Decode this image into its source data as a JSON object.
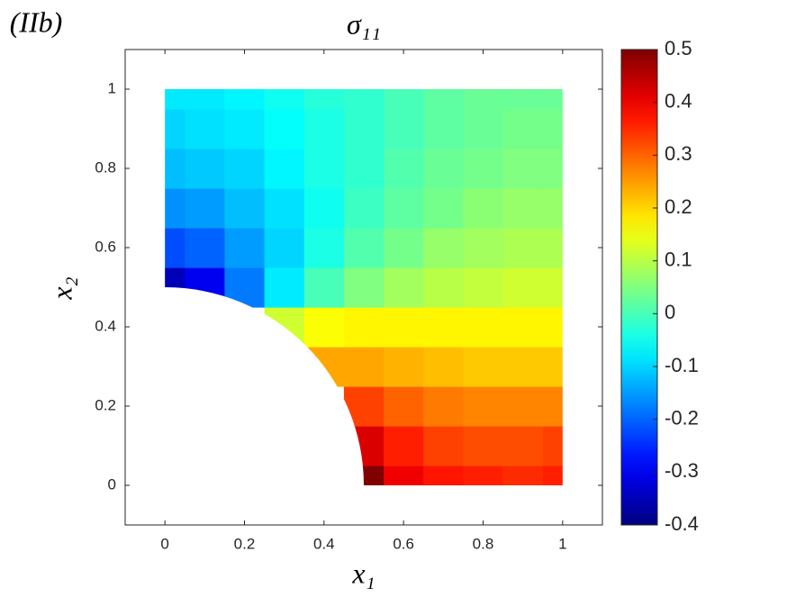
{
  "chart_data": {
    "type": "contour",
    "panel_label": "(IIb)",
    "title": "σ₁₁",
    "x_label": "x₁",
    "y_label": "x₂",
    "x": [
      0,
      0.1,
      0.2,
      0.3,
      0.4,
      0.5,
      0.6,
      0.7,
      0.8,
      0.9,
      1
    ],
    "y": [
      0,
      0.1,
      0.2,
      0.3,
      0.4,
      0.5,
      0.6,
      0.7,
      0.8,
      0.9,
      1
    ],
    "z": [
      [
        null,
        null,
        null,
        null,
        null,
        0.5,
        0.4,
        0.37,
        0.36,
        0.35,
        0.36
      ],
      [
        null,
        null,
        null,
        null,
        null,
        0.42,
        0.36,
        0.33,
        0.32,
        0.32,
        0.33
      ],
      [
        null,
        null,
        null,
        null,
        null,
        0.33,
        0.3,
        0.28,
        0.27,
        0.27,
        0.27
      ],
      [
        null,
        null,
        null,
        null,
        0.24,
        0.24,
        0.23,
        0.22,
        0.21,
        0.21,
        0.21
      ],
      [
        null,
        null,
        null,
        0.12,
        0.16,
        0.17,
        0.17,
        0.17,
        0.17,
        0.17,
        0.17
      ],
      [
        -0.35,
        -0.3,
        -0.18,
        -0.08,
        0.0,
        0.05,
        0.08,
        0.1,
        0.11,
        0.12,
        0.12
      ],
      [
        -0.22,
        -0.2,
        -0.15,
        -0.1,
        -0.04,
        0.01,
        0.04,
        0.07,
        0.08,
        0.09,
        0.09
      ],
      [
        -0.16,
        -0.15,
        -0.12,
        -0.09,
        -0.05,
        -0.01,
        0.02,
        0.04,
        0.06,
        0.07,
        0.07
      ],
      [
        -0.12,
        -0.11,
        -0.1,
        -0.07,
        -0.04,
        -0.02,
        0.01,
        0.03,
        0.04,
        0.05,
        0.05
      ],
      [
        -0.1,
        -0.09,
        -0.08,
        -0.06,
        -0.04,
        -0.02,
        0.0,
        0.02,
        0.03,
        0.04,
        0.04
      ],
      [
        -0.08,
        -0.08,
        -0.07,
        -0.05,
        -0.03,
        -0.02,
        0.0,
        0.02,
        0.03,
        0.03,
        0.03
      ]
    ],
    "hole_radius": 0.5,
    "colormap": "jet",
    "xlim": [
      -0.1,
      1.1
    ],
    "xticks": [
      0,
      0.2,
      0.4,
      0.6,
      0.8,
      1
    ],
    "ylim": [
      -0.1,
      1.1
    ],
    "yticks": [
      0,
      0.2,
      0.4,
      0.6,
      0.8,
      1
    ],
    "clim": [
      -0.4,
      0.5
    ],
    "cticks": [
      -0.4,
      -0.3,
      -0.2,
      -0.1,
      0,
      0.1,
      0.2,
      0.3,
      0.4,
      0.5
    ]
  }
}
